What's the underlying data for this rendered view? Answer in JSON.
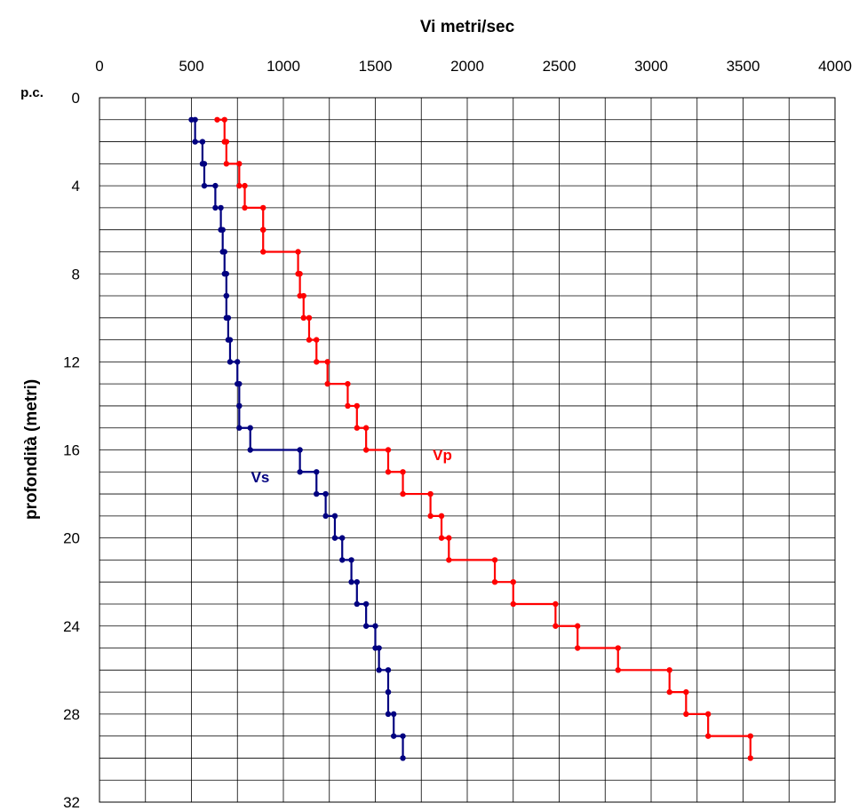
{
  "chart_data": {
    "type": "line",
    "title": "",
    "xlabel": "Vi metri/sec",
    "ylabel": "profondità (metri)",
    "top_label": "p.c.",
    "xlim": [
      0,
      4000
    ],
    "ylim": [
      0,
      32
    ],
    "y_inverted": true,
    "x_axis_position": "top",
    "x_ticks": [
      0,
      500,
      1000,
      1500,
      2000,
      2500,
      3000,
      3500,
      4000
    ],
    "y_ticks": [
      0,
      4,
      8,
      12,
      16,
      20,
      24,
      28,
      32
    ],
    "x_gridlines": [
      0,
      250,
      500,
      750,
      1000,
      1250,
      1500,
      1750,
      2000,
      2250,
      2500,
      2750,
      3000,
      3250,
      3500,
      3750,
      4000
    ],
    "y_gridlines": [
      0,
      1,
      2,
      3,
      4,
      5,
      6,
      7,
      8,
      9,
      10,
      11,
      12,
      13,
      14,
      15,
      16,
      17,
      18,
      19,
      20,
      21,
      22,
      23,
      24,
      25,
      26,
      27,
      28,
      29,
      30,
      31,
      32
    ],
    "grid": true,
    "series": [
      {
        "name": "Vs",
        "color": "#000080",
        "points": [
          [
            500,
            1
          ],
          [
            520,
            1
          ],
          [
            520,
            2
          ],
          [
            560,
            2
          ],
          [
            560,
            3
          ],
          [
            570,
            3
          ],
          [
            570,
            4
          ],
          [
            630,
            4
          ],
          [
            630,
            5
          ],
          [
            660,
            5
          ],
          [
            660,
            6
          ],
          [
            670,
            6
          ],
          [
            670,
            7
          ],
          [
            680,
            7
          ],
          [
            680,
            8
          ],
          [
            690,
            8
          ],
          [
            690,
            9
          ],
          [
            690,
            9
          ],
          [
            690,
            10
          ],
          [
            700,
            10
          ],
          [
            700,
            11
          ],
          [
            710,
            11
          ],
          [
            710,
            12
          ],
          [
            750,
            12
          ],
          [
            750,
            13
          ],
          [
            760,
            13
          ],
          [
            760,
            14
          ],
          [
            760,
            14
          ],
          [
            760,
            15
          ],
          [
            820,
            15
          ],
          [
            820,
            16
          ],
          [
            1090,
            16
          ],
          [
            1090,
            17
          ],
          [
            1180,
            17
          ],
          [
            1180,
            18
          ],
          [
            1230,
            18
          ],
          [
            1230,
            19
          ],
          [
            1280,
            19
          ],
          [
            1280,
            20
          ],
          [
            1320,
            20
          ],
          [
            1320,
            21
          ],
          [
            1370,
            21
          ],
          [
            1370,
            22
          ],
          [
            1400,
            22
          ],
          [
            1400,
            23
          ],
          [
            1450,
            23
          ],
          [
            1450,
            24
          ],
          [
            1500,
            24
          ],
          [
            1500,
            25
          ],
          [
            1520,
            25
          ],
          [
            1520,
            26
          ],
          [
            1570,
            26
          ],
          [
            1570,
            27
          ],
          [
            1570,
            27
          ],
          [
            1570,
            28
          ],
          [
            1600,
            28
          ],
          [
            1600,
            29
          ],
          [
            1650,
            29
          ],
          [
            1650,
            30
          ]
        ]
      },
      {
        "name": "Vp",
        "color": "#ff0000",
        "points": [
          [
            640,
            1
          ],
          [
            680,
            1
          ],
          [
            680,
            2
          ],
          [
            690,
            2
          ],
          [
            690,
            3
          ],
          [
            760,
            3
          ],
          [
            760,
            4
          ],
          [
            790,
            4
          ],
          [
            790,
            5
          ],
          [
            890,
            5
          ],
          [
            890,
            6
          ],
          [
            890,
            6
          ],
          [
            890,
            7
          ],
          [
            1080,
            7
          ],
          [
            1080,
            8
          ],
          [
            1090,
            8
          ],
          [
            1090,
            9
          ],
          [
            1110,
            9
          ],
          [
            1110,
            10
          ],
          [
            1140,
            10
          ],
          [
            1140,
            11
          ],
          [
            1180,
            11
          ],
          [
            1180,
            12
          ],
          [
            1240,
            12
          ],
          [
            1240,
            13
          ],
          [
            1350,
            13
          ],
          [
            1350,
            14
          ],
          [
            1400,
            14
          ],
          [
            1400,
            15
          ],
          [
            1450,
            15
          ],
          [
            1450,
            16
          ],
          [
            1570,
            16
          ],
          [
            1570,
            17
          ],
          [
            1650,
            17
          ],
          [
            1650,
            18
          ],
          [
            1800,
            18
          ],
          [
            1800,
            19
          ],
          [
            1860,
            19
          ],
          [
            1860,
            20
          ],
          [
            1900,
            20
          ],
          [
            1900,
            21
          ],
          [
            2150,
            21
          ],
          [
            2150,
            22
          ],
          [
            2250,
            22
          ],
          [
            2250,
            23
          ],
          [
            2480,
            23
          ],
          [
            2480,
            24
          ],
          [
            2600,
            24
          ],
          [
            2600,
            25
          ],
          [
            2820,
            25
          ],
          [
            2820,
            26
          ],
          [
            3100,
            26
          ],
          [
            3100,
            27
          ],
          [
            3190,
            27
          ],
          [
            3190,
            28
          ],
          [
            3310,
            28
          ],
          [
            3310,
            29
          ],
          [
            3540,
            29
          ],
          [
            3540,
            30
          ]
        ]
      }
    ]
  }
}
